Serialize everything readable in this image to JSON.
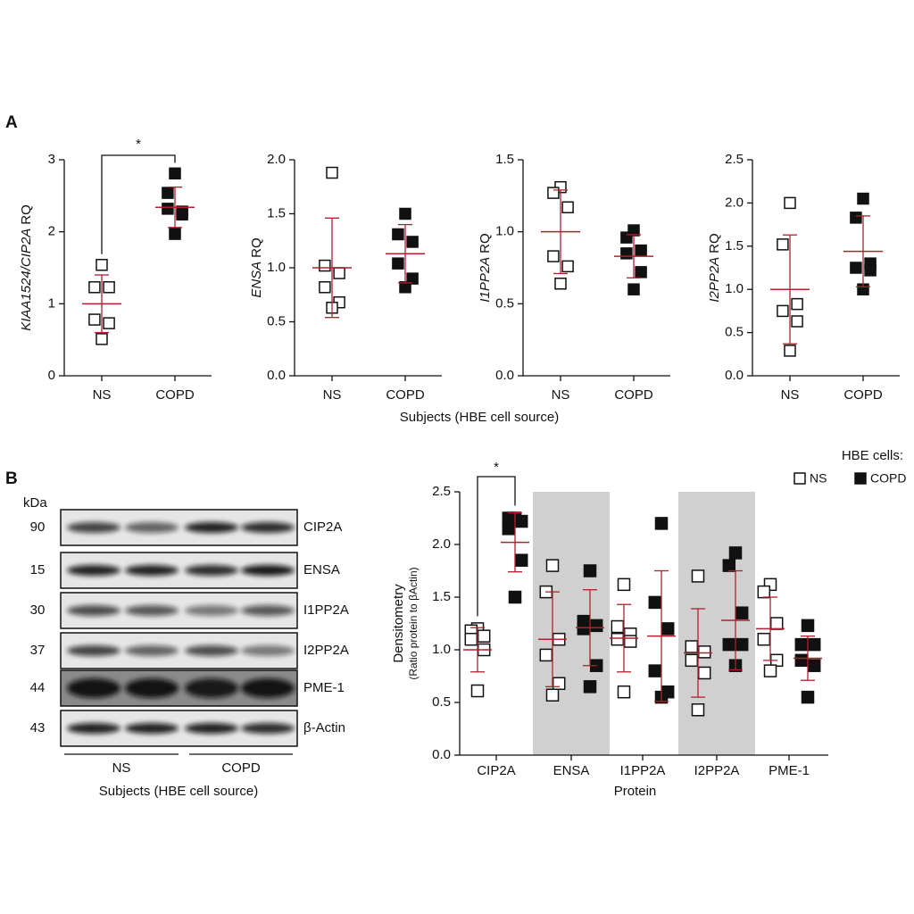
{
  "panels": {
    "A": {
      "label": "A",
      "xlabel": "Subjects (HBE cell source)"
    },
    "B": {
      "label": "B"
    }
  },
  "blot": {
    "unit_label": "kDa",
    "rows": [
      {
        "kda": 90,
        "name": "CIP2A"
      },
      {
        "kda": 15,
        "name": "ENSA"
      },
      {
        "kda": 30,
        "name": "I1PP2A"
      },
      {
        "kda": 37,
        "name": "I2PP2A"
      },
      {
        "kda": 44,
        "name": "PME-1"
      },
      {
        "kda": 43,
        "name": "β-Actin"
      }
    ],
    "groups": [
      "NS",
      "COPD"
    ],
    "xlabel": "Subjects (HBE cell source)"
  },
  "chart_data": [
    {
      "type": "dot",
      "ylabel": [
        "KIAA1524/CIP2A",
        "RQ"
      ],
      "categories": [
        "NS",
        "COPD"
      ],
      "markers": [
        "open",
        "filled"
      ],
      "values": [
        [
          1.54,
          1.23,
          1.23,
          0.78,
          0.73,
          0.51
        ],
        [
          2.81,
          2.54,
          2.28,
          2.32,
          2.24,
          1.97
        ]
      ],
      "mean": [
        1.0,
        2.34
      ],
      "sd": [
        0.4,
        0.28
      ],
      "line_color": "#b0202e",
      "ylim": [
        0,
        3
      ],
      "yticks": [
        0,
        1,
        2,
        3
      ],
      "annotation": "*"
    },
    {
      "type": "dot",
      "ylabel": [
        "ENSA",
        "RQ"
      ],
      "categories": [
        "NS",
        "COPD"
      ],
      "markers": [
        "open",
        "filled"
      ],
      "values": [
        [
          1.88,
          1.02,
          0.95,
          0.82,
          0.68,
          0.63
        ],
        [
          1.5,
          1.31,
          1.24,
          1.04,
          0.9,
          0.82
        ]
      ],
      "mean": [
        1.0,
        1.13
      ],
      "sd": [
        0.46,
        0.27
      ],
      "line_color": "#b0202e",
      "ylim": [
        0,
        2
      ],
      "yticks": [
        {
          "value": 0,
          "label": "0.0"
        },
        0.5,
        {
          "value": 1,
          "label": "1.0"
        },
        1.5,
        {
          "value": 2,
          "label": "2.0"
        }
      ]
    },
    {
      "type": "dot",
      "ylabel": [
        "I1PP2A",
        "RQ"
      ],
      "categories": [
        "NS",
        "COPD"
      ],
      "markers": [
        "open",
        "filled"
      ],
      "values": [
        [
          1.31,
          1.27,
          1.17,
          0.83,
          0.76,
          0.64
        ],
        [
          1.01,
          0.96,
          0.87,
          0.85,
          0.72,
          0.6
        ]
      ],
      "mean": [
        1.0,
        0.83
      ],
      "sd": [
        0.29,
        0.15
      ],
      "line_color": "#b0202e",
      "ylim": [
        0,
        1.5
      ],
      "yticks": [
        {
          "value": 0,
          "label": "0.0"
        },
        0.5,
        {
          "value": 1,
          "label": "1.0"
        },
        1.5
      ]
    },
    {
      "type": "dot",
      "ylabel": [
        "I2PP2A",
        "RQ"
      ],
      "categories": [
        "NS",
        "COPD"
      ],
      "markers": [
        "open",
        "filled"
      ],
      "values": [
        [
          2.0,
          1.52,
          0.83,
          0.75,
          0.63,
          0.29
        ],
        [
          2.05,
          1.83,
          1.3,
          1.25,
          1.22,
          1.0
        ]
      ],
      "mean": [
        1.0,
        1.44
      ],
      "sd": [
        0.63,
        0.41
      ],
      "line_color": "#b0202e",
      "ylim": [
        0,
        2.5
      ],
      "yticks": [
        {
          "value": 0,
          "label": "0.0"
        },
        0.5,
        {
          "value": 1,
          "label": "1.0"
        },
        1.5,
        {
          "value": 2,
          "label": "2.0"
        },
        2.5
      ]
    },
    {
      "type": "grouped-dot",
      "ylabel": [
        "Densitometry",
        "(Ratio protein to βActin)"
      ],
      "xlabel": "Protein",
      "categories": [
        "CIP2A",
        "ENSA",
        "I1PP2A",
        "I2PP2A",
        "PME-1"
      ],
      "shade": [
        false,
        true,
        false,
        true,
        false
      ],
      "legend_title": "HBE cells:",
      "line_color": "#b0202e",
      "series": [
        {
          "name": "NS",
          "marker": "open",
          "values": [
            [
              1.2,
              1.18,
              1.13,
              1.1,
              1.0,
              0.61
            ],
            [
              1.8,
              1.55,
              1.1,
              0.95,
              0.68,
              0.57
            ],
            [
              1.62,
              1.22,
              1.15,
              1.1,
              1.08,
              0.6
            ],
            [
              1.7,
              1.03,
              0.98,
              0.9,
              0.78,
              0.43
            ],
            [
              1.62,
              1.55,
              1.25,
              1.1,
              0.9,
              0.8
            ]
          ],
          "mean": [
            1.0,
            1.1,
            1.11,
            0.97,
            1.2
          ],
          "sd": [
            0.21,
            0.45,
            0.32,
            0.42,
            0.3
          ]
        },
        {
          "name": "COPD",
          "marker": "filled",
          "values": [
            [
              2.25,
              2.25,
              2.22,
              2.15,
              1.85,
              1.5
            ],
            [
              1.75,
              1.27,
              1.23,
              1.2,
              0.85,
              0.65
            ],
            [
              2.2,
              1.45,
              1.2,
              0.8,
              0.6,
              0.55
            ],
            [
              1.92,
              1.8,
              1.35,
              1.05,
              1.05,
              0.85
            ],
            [
              1.23,
              1.05,
              1.05,
              0.9,
              0.85,
              0.55
            ]
          ],
          "mean": [
            2.02,
            1.21,
            1.13,
            1.28,
            0.92
          ],
          "sd": [
            0.28,
            0.36,
            0.62,
            0.47,
            0.21
          ]
        }
      ],
      "ylim": [
        0,
        2.5
      ],
      "yticks": [
        {
          "value": 0,
          "label": "0.0"
        },
        0.5,
        {
          "value": 1,
          "label": "1.0"
        },
        1.5,
        {
          "value": 2,
          "label": "2.0"
        },
        2.5
      ],
      "annotation": "*"
    }
  ]
}
